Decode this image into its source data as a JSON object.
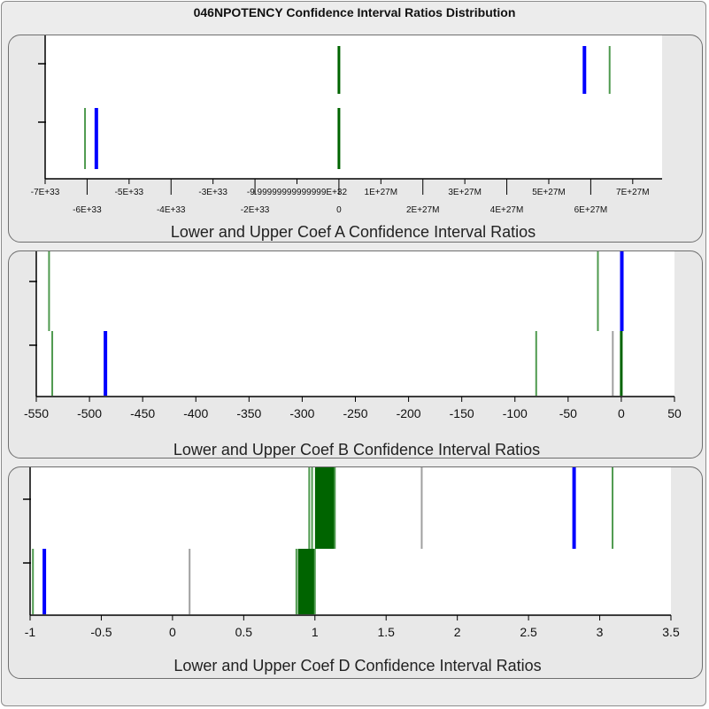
{
  "title": "046NPOTENCY Confidence Interval Ratios Distribution",
  "colors": {
    "lower_series": "#006400",
    "upper_series": "#006400",
    "highlight": "#0000ff",
    "gray": "#a0a0a0",
    "panel_bg": "#e8e8e8",
    "plot_bg": "#ffffff"
  },
  "chart_data": [
    {
      "type": "scatter",
      "title": "",
      "xlabel": "Lower and Upper Coef A Confidence Interval Ratios",
      "ylabel": "",
      "rows": [
        "lower",
        "upper"
      ],
      "tick_labels": [
        "-7E+33",
        "-6E+33",
        "-5E+33",
        "-4E+33",
        "-3E+33",
        "-2E+33",
        "-9.99999999999999E+32",
        "0",
        "1E+27M",
        "2E+27M",
        "3E+27M",
        "4E+27M",
        "5E+27M",
        "6E+27M",
        "7E+27M"
      ],
      "tick_index_range": [
        0,
        14.7
      ],
      "marks": [
        {
          "row": "lower",
          "x": 0.95,
          "color": "light-green"
        },
        {
          "row": "lower",
          "x": 1.22,
          "color": "blue"
        },
        {
          "row": "lower",
          "x": 7,
          "color": "green"
        },
        {
          "row": "upper",
          "x": 7,
          "color": "green"
        },
        {
          "row": "upper",
          "x": 12.85,
          "color": "blue"
        },
        {
          "row": "upper",
          "x": 13.45,
          "color": "light-green"
        }
      ]
    },
    {
      "type": "scatter",
      "title": "",
      "xlabel": "Lower and Upper Coef B Confidence Interval Ratios",
      "ylabel": "",
      "rows": [
        "lower",
        "upper"
      ],
      "xlim": [
        -550,
        50
      ],
      "ticks": [
        -550,
        -500,
        -450,
        -400,
        -350,
        -300,
        -250,
        -200,
        -150,
        -100,
        -50,
        0,
        50
      ],
      "marks": [
        {
          "row": "lower",
          "x": -535,
          "color": "light-green"
        },
        {
          "row": "lower",
          "x": -485,
          "color": "blue"
        },
        {
          "row": "lower",
          "x": -80,
          "color": "light-green"
        },
        {
          "row": "lower",
          "x": -8,
          "color": "gray"
        },
        {
          "row": "lower",
          "x": 0,
          "color": "green"
        },
        {
          "row": "upper",
          "x": -538,
          "color": "light-green"
        },
        {
          "row": "upper",
          "x": -22,
          "color": "light-green"
        },
        {
          "row": "upper",
          "x": 0.5,
          "color": "blue"
        }
      ]
    },
    {
      "type": "scatter",
      "title": "",
      "xlabel": "Lower and Upper Coef D Confidence Interval Ratios",
      "ylabel": "",
      "rows": [
        "lower",
        "upper"
      ],
      "xlim": [
        -1,
        3.5
      ],
      "ticks": [
        -1,
        -0.5,
        0,
        0.5,
        1,
        1.5,
        2,
        2.5,
        3,
        3.5
      ],
      "tick_labels": [
        "-1",
        "-0.5",
        "0",
        "0.5",
        "1",
        "1.5",
        "2",
        "2.5",
        "3",
        "3.5"
      ],
      "marks": [
        {
          "row": "lower",
          "x": -0.98,
          "color": "light-green"
        },
        {
          "row": "lower",
          "x": -0.9,
          "color": "blue"
        },
        {
          "row": "lower",
          "x": 0.12,
          "color": "gray"
        },
        {
          "row": "lower",
          "x": 0.87,
          "color": "light-green"
        },
        {
          "row": "lower",
          "x": 0.89,
          "color": "green"
        },
        {
          "row": "lower",
          "x": 0.9,
          "color": "green"
        },
        {
          "row": "lower",
          "x": 0.91,
          "color": "green"
        },
        {
          "row": "lower",
          "x": 0.92,
          "color": "green"
        },
        {
          "row": "lower",
          "x": 0.93,
          "color": "green"
        },
        {
          "row": "lower",
          "x": 0.94,
          "color": "green"
        },
        {
          "row": "lower",
          "x": 0.95,
          "color": "green"
        },
        {
          "row": "lower",
          "x": 0.96,
          "color": "green"
        },
        {
          "row": "lower",
          "x": 0.97,
          "color": "green"
        },
        {
          "row": "lower",
          "x": 0.98,
          "color": "green"
        },
        {
          "row": "lower",
          "x": 0.99,
          "color": "green"
        },
        {
          "row": "lower",
          "x": 1.0,
          "color": "light-green"
        },
        {
          "row": "upper",
          "x": 0.96,
          "color": "light-green"
        },
        {
          "row": "upper",
          "x": 0.98,
          "color": "light-green"
        },
        {
          "row": "upper",
          "x": 1.01,
          "color": "green"
        },
        {
          "row": "upper",
          "x": 1.02,
          "color": "green"
        },
        {
          "row": "upper",
          "x": 1.03,
          "color": "green"
        },
        {
          "row": "upper",
          "x": 1.04,
          "color": "green"
        },
        {
          "row": "upper",
          "x": 1.05,
          "color": "green"
        },
        {
          "row": "upper",
          "x": 1.06,
          "color": "green"
        },
        {
          "row": "upper",
          "x": 1.07,
          "color": "green"
        },
        {
          "row": "upper",
          "x": 1.08,
          "color": "green"
        },
        {
          "row": "upper",
          "x": 1.09,
          "color": "green"
        },
        {
          "row": "upper",
          "x": 1.1,
          "color": "green"
        },
        {
          "row": "upper",
          "x": 1.11,
          "color": "green"
        },
        {
          "row": "upper",
          "x": 1.12,
          "color": "green"
        },
        {
          "row": "upper",
          "x": 1.13,
          "color": "green"
        },
        {
          "row": "upper",
          "x": 1.14,
          "color": "light-green"
        },
        {
          "row": "upper",
          "x": 1.75,
          "color": "gray"
        },
        {
          "row": "upper",
          "x": 2.82,
          "color": "blue"
        },
        {
          "row": "upper",
          "x": 3.09,
          "color": "light-green"
        }
      ]
    }
  ]
}
